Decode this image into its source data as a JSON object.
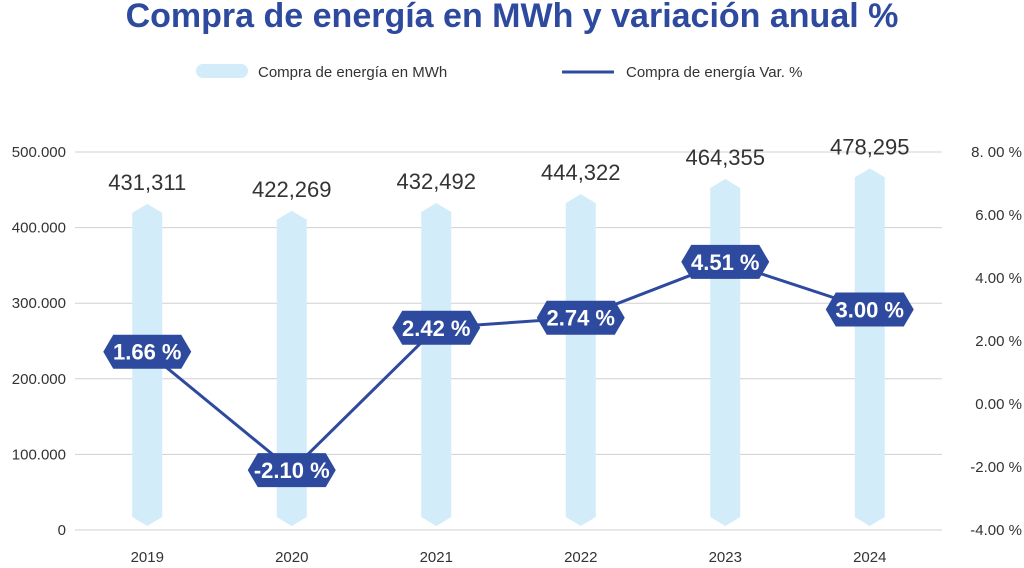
{
  "chart_data": {
    "type": "bar",
    "title": "Compra de energía en MWh y variación anual %",
    "categories": [
      "2019",
      "2020",
      "2021",
      "2022",
      "2023",
      "2024"
    ],
    "series": [
      {
        "name": "Compra de energía en MWh",
        "kind": "bar",
        "axis": "left",
        "values": [
          431311,
          422269,
          432492,
          444322,
          464355,
          478295
        ],
        "labels": [
          "431,311",
          "422,269",
          "432,492",
          "444,322",
          "464,355",
          "478,295"
        ],
        "color": "#d3ecfa"
      },
      {
        "name": "Compra de energía Var. %",
        "kind": "line",
        "axis": "right",
        "values": [
          1.66,
          -2.1,
          2.42,
          2.74,
          4.51,
          3.0
        ],
        "labels": [
          "1.66 %",
          "-2.10 %",
          "2.42 %",
          "2.74 %",
          "4.51 %",
          "3.00 %"
        ],
        "color": "#2e4a9e"
      }
    ],
    "y_left": {
      "ylim": [
        0,
        500000
      ],
      "ticks": [
        0,
        100000,
        200000,
        300000,
        400000,
        500000
      ],
      "tick_labels": [
        "0",
        "100.000",
        "200.000",
        "300.000",
        "400.000",
        "500.000"
      ]
    },
    "y_right": {
      "ylim": [
        -4,
        8
      ],
      "ticks": [
        -4,
        -2,
        0,
        2,
        4,
        6,
        8
      ],
      "tick_labels": [
        "-4.00 %",
        "-2.00 %",
        "0.00 %",
        "2.00 %",
        "4.00 %",
        "6.00 %",
        "8. 00 %"
      ]
    },
    "legend_position": "top",
    "grid": true,
    "colors": {
      "title": "#2e4a9e",
      "grid": "#d0d0d0",
      "text": "#333333"
    }
  }
}
